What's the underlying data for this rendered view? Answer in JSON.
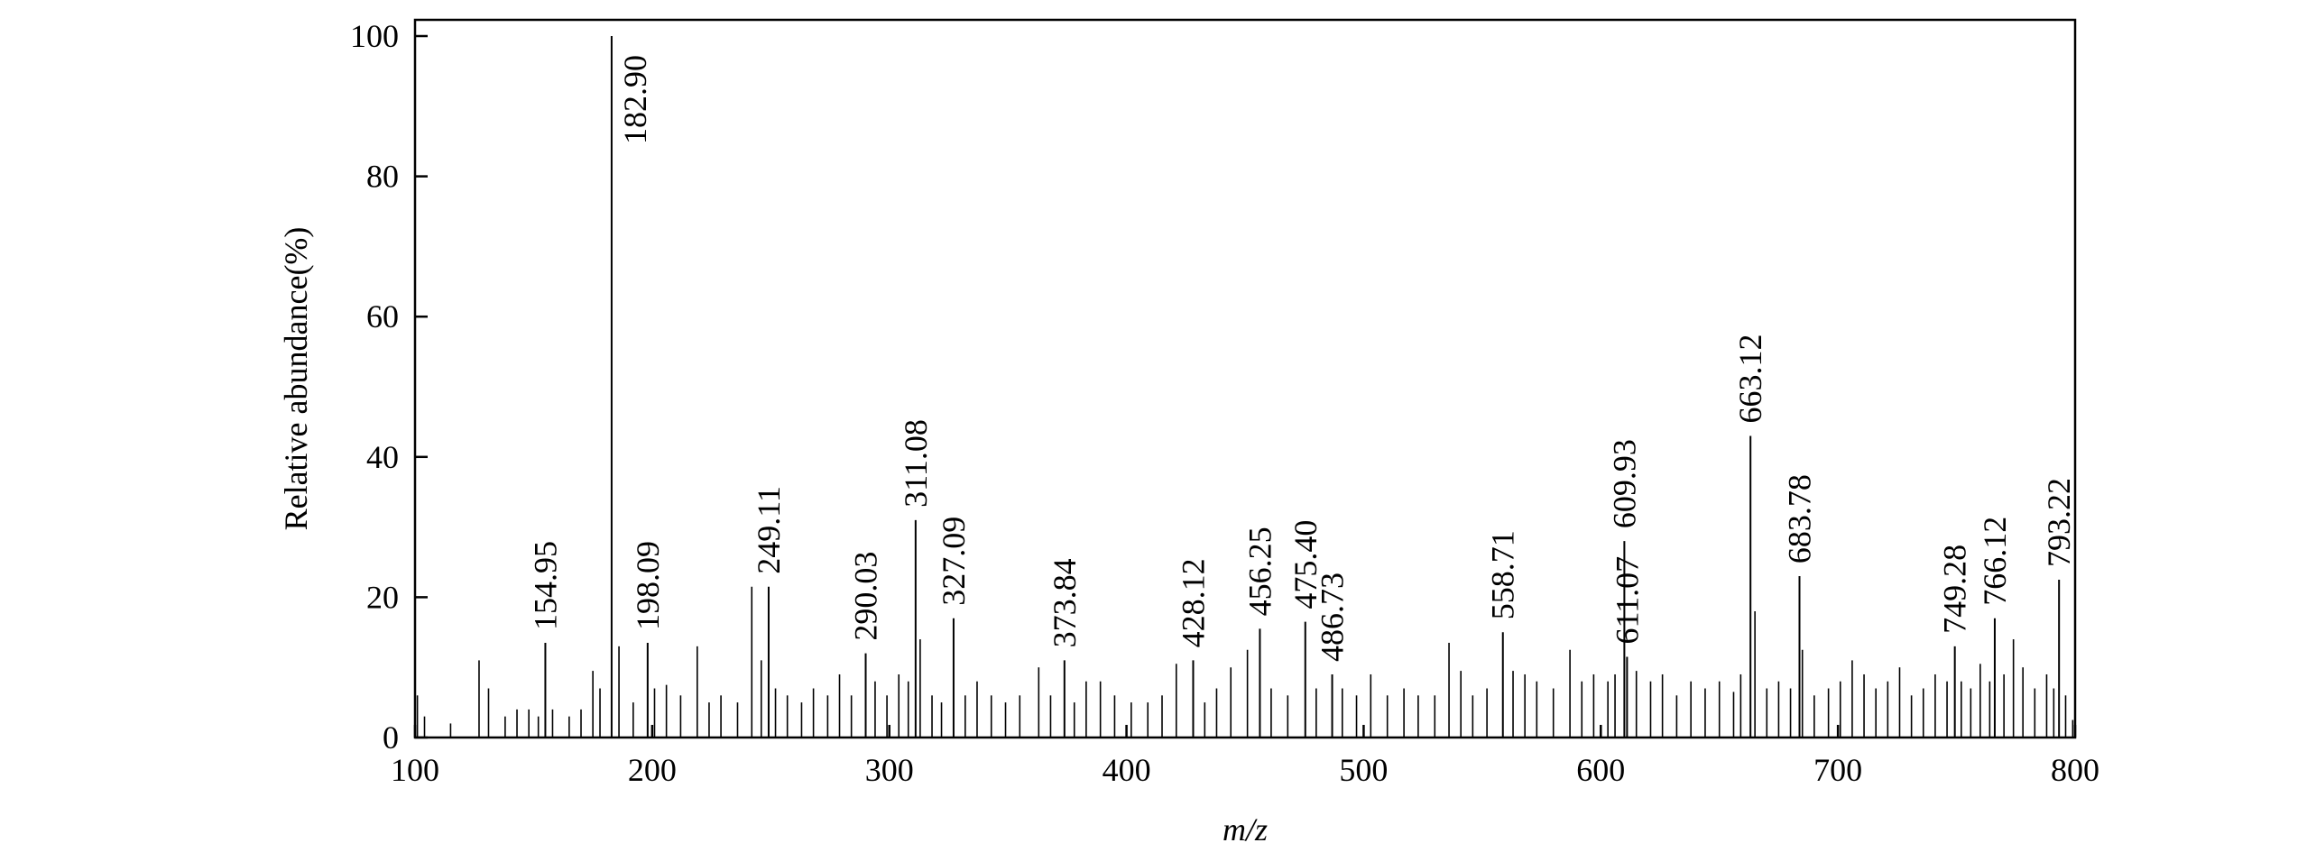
{
  "chart_data": {
    "type": "bar",
    "title": "",
    "xlabel": "m/z",
    "ylabel": "Relative abundance(%)",
    "xlim": [
      100,
      800
    ],
    "ylim": [
      0,
      100
    ],
    "x_ticks": [
      100,
      200,
      300,
      400,
      500,
      600,
      700,
      800
    ],
    "y_ticks": [
      0,
      20,
      40,
      60,
      80,
      100
    ],
    "grid": false,
    "legend": "none",
    "labeled_peaks": [
      {
        "mz": 154.95,
        "abundance": 13.5,
        "label": "154.95"
      },
      {
        "mz": 182.9,
        "abundance": 100,
        "label": "182.90"
      },
      {
        "mz": 198.09,
        "abundance": 13.5,
        "label": "198.09"
      },
      {
        "mz": 249.11,
        "abundance": 21.5,
        "label": "249.11"
      },
      {
        "mz": 290.03,
        "abundance": 12,
        "label": "290.03"
      },
      {
        "mz": 311.08,
        "abundance": 31,
        "label": "311.08"
      },
      {
        "mz": 327.09,
        "abundance": 17,
        "label": "327.09"
      },
      {
        "mz": 373.84,
        "abundance": 11,
        "label": "373.84"
      },
      {
        "mz": 428.12,
        "abundance": 11,
        "label": "428.12"
      },
      {
        "mz": 456.25,
        "abundance": 15.5,
        "label": "456.25"
      },
      {
        "mz": 475.4,
        "abundance": 16.5,
        "label": "475.40"
      },
      {
        "mz": 486.73,
        "abundance": 9,
        "label": "486.73"
      },
      {
        "mz": 558.71,
        "abundance": 15,
        "label": "558.71"
      },
      {
        "mz": 609.93,
        "abundance": 28,
        "label": "609.93"
      },
      {
        "mz": 611.07,
        "abundance": 11.5,
        "label": "611.07"
      },
      {
        "mz": 663.12,
        "abundance": 43,
        "label": "663.12"
      },
      {
        "mz": 683.78,
        "abundance": 23,
        "label": "683.78"
      },
      {
        "mz": 749.28,
        "abundance": 13,
        "label": "749.28"
      },
      {
        "mz": 766.12,
        "abundance": 17,
        "label": "766.12"
      },
      {
        "mz": 793.22,
        "abundance": 22.5,
        "label": "793.22"
      }
    ],
    "unlabeled_peaks": [
      [
        101,
        6
      ],
      [
        104,
        3
      ],
      [
        115,
        2
      ],
      [
        127,
        11
      ],
      [
        131,
        7
      ],
      [
        138,
        3
      ],
      [
        143,
        4
      ],
      [
        148,
        4
      ],
      [
        152,
        3
      ],
      [
        158,
        4
      ],
      [
        165,
        3
      ],
      [
        170,
        4
      ],
      [
        175,
        9.5
      ],
      [
        178,
        7
      ],
      [
        186,
        13
      ],
      [
        192,
        5
      ],
      [
        201,
        7
      ],
      [
        206,
        7.5
      ],
      [
        212,
        6
      ],
      [
        219,
        13
      ],
      [
        224,
        5
      ],
      [
        229,
        6
      ],
      [
        236,
        5
      ],
      [
        242,
        21.5
      ],
      [
        246,
        11
      ],
      [
        252,
        7
      ],
      [
        257,
        6
      ],
      [
        263,
        5
      ],
      [
        268,
        7
      ],
      [
        274,
        6
      ],
      [
        279,
        9
      ],
      [
        284,
        6
      ],
      [
        294,
        8
      ],
      [
        299,
        6
      ],
      [
        304,
        9
      ],
      [
        308,
        8
      ],
      [
        313,
        14
      ],
      [
        318,
        6
      ],
      [
        322,
        5
      ],
      [
        332,
        6
      ],
      [
        337,
        8
      ],
      [
        343,
        6
      ],
      [
        349,
        5
      ],
      [
        355,
        6
      ],
      [
        363,
        10
      ],
      [
        368,
        6
      ],
      [
        378,
        5
      ],
      [
        383,
        8
      ],
      [
        389,
        8
      ],
      [
        395,
        6
      ],
      [
        402,
        5
      ],
      [
        409,
        5
      ],
      [
        415,
        6
      ],
      [
        421,
        10.5
      ],
      [
        433,
        5
      ],
      [
        438,
        7
      ],
      [
        444,
        10
      ],
      [
        451,
        12.5
      ],
      [
        461,
        7
      ],
      [
        468,
        6
      ],
      [
        480,
        7
      ],
      [
        491,
        7
      ],
      [
        497,
        6
      ],
      [
        503,
        9
      ],
      [
        510,
        6
      ],
      [
        517,
        7
      ],
      [
        523,
        6
      ],
      [
        530,
        6
      ],
      [
        536,
        13.5
      ],
      [
        541,
        9.5
      ],
      [
        546,
        6
      ],
      [
        552,
        7
      ],
      [
        563,
        9.5
      ],
      [
        568,
        9
      ],
      [
        573,
        8
      ],
      [
        580,
        7
      ],
      [
        587,
        12.5
      ],
      [
        592,
        8
      ],
      [
        597,
        9
      ],
      [
        603,
        8
      ],
      [
        606,
        9
      ],
      [
        615,
        9.5
      ],
      [
        621,
        8
      ],
      [
        626,
        9
      ],
      [
        632,
        6
      ],
      [
        638,
        8
      ],
      [
        644,
        7
      ],
      [
        650,
        8
      ],
      [
        656,
        6.5
      ],
      [
        659,
        9
      ],
      [
        665,
        18
      ],
      [
        670,
        7
      ],
      [
        675,
        8
      ],
      [
        680,
        7
      ],
      [
        685,
        12.5
      ],
      [
        690,
        6
      ],
      [
        696,
        7
      ],
      [
        701,
        8
      ],
      [
        706,
        11
      ],
      [
        711,
        9
      ],
      [
        716,
        7
      ],
      [
        721,
        8
      ],
      [
        726,
        10
      ],
      [
        731,
        6
      ],
      [
        736,
        7
      ],
      [
        741,
        9
      ],
      [
        746,
        8
      ],
      [
        752,
        8
      ],
      [
        756,
        7
      ],
      [
        760,
        10.5
      ],
      [
        764,
        8
      ],
      [
        770,
        9
      ],
      [
        774,
        14
      ],
      [
        778,
        10
      ],
      [
        783,
        7
      ],
      [
        788,
        9
      ],
      [
        791,
        7
      ],
      [
        796,
        6
      ],
      [
        799,
        2.5
      ]
    ]
  }
}
